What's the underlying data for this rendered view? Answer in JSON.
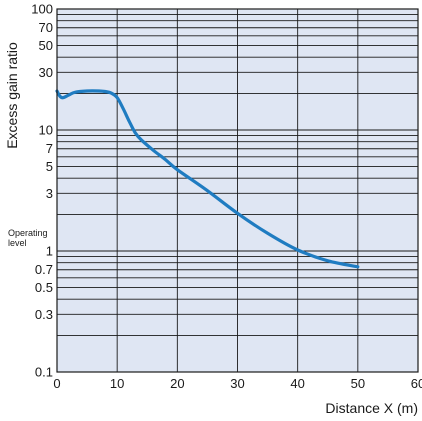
{
  "chart_data": {
    "type": "line",
    "title": "",
    "xlabel": "Distance X (m)",
    "ylabel": "Excess gain ratio",
    "x_scale": "linear",
    "y_scale": "log",
    "xlim": [
      0,
      60
    ],
    "ylim": [
      0.1,
      100
    ],
    "x_ticks": [
      0,
      10,
      20,
      30,
      40,
      50,
      60
    ],
    "x_tick_labels": [
      "0",
      "10",
      "20",
      "30",
      "40",
      "50",
      "60"
    ],
    "y_ticks": [
      0.1,
      0.3,
      0.5,
      0.7,
      1,
      3,
      5,
      7,
      10,
      30,
      50,
      70,
      100
    ],
    "y_tick_labels": [
      "0.1",
      "0.3",
      "0.5",
      "0.7",
      "1",
      "3",
      "5",
      "7",
      "10",
      "30",
      "50",
      "70",
      "100"
    ],
    "y_gridlines": [
      0.1,
      0.2,
      0.3,
      0.4,
      0.5,
      0.6,
      0.7,
      0.8,
      0.9,
      1,
      2,
      3,
      4,
      5,
      6,
      7,
      8,
      9,
      10,
      20,
      30,
      40,
      50,
      60,
      70,
      80,
      90,
      100
    ],
    "grid": true,
    "annotation": {
      "lines": [
        "Operating",
        "level"
      ],
      "value": 1
    },
    "colors": {
      "plot_background": "#dfe6f3",
      "line": "#1f7cc1",
      "grid": "#1a1a1a"
    },
    "series": [
      {
        "x": [
          0,
          0.5,
          1,
          2,
          3,
          5,
          7,
          8,
          9,
          10,
          11,
          12,
          13,
          14,
          16,
          18,
          20,
          25,
          30,
          35,
          40,
          45,
          50
        ],
        "y": [
          21,
          19,
          18.5,
          19.5,
          20.5,
          21,
          21,
          20.8,
          20.2,
          18.5,
          15,
          11.8,
          9.5,
          8.3,
          6.8,
          5.7,
          4.7,
          3.15,
          2.05,
          1.4,
          1.02,
          0.83,
          0.74
        ]
      }
    ]
  }
}
